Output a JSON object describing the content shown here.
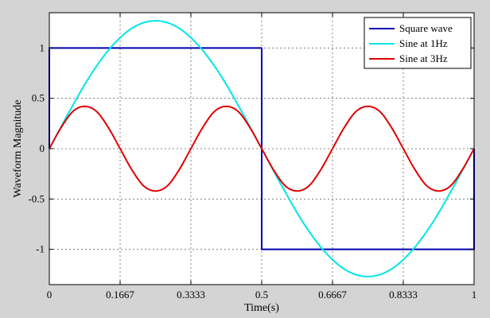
{
  "chart_data": {
    "type": "line",
    "title": "",
    "xlabel": "Time(s)",
    "ylabel": "Waveform Magnitude",
    "xlim": [
      0,
      1
    ],
    "ylim": [
      -1.35,
      1.35
    ],
    "grid": true,
    "legend_position": "top-right",
    "x_ticks": [
      0,
      0.1667,
      0.3333,
      0.5,
      0.6667,
      0.8333,
      1
    ],
    "x_tick_labels": [
      "0",
      "0.1667",
      "0.3333",
      "0.5",
      "0.6667",
      "0.8333",
      "1"
    ],
    "y_ticks": [
      -1,
      -0.5,
      0,
      0.5,
      1
    ],
    "y_tick_labels": [
      "-1",
      "-0.5",
      "0",
      "0.5",
      "1"
    ],
    "series": [
      {
        "name": "Square wave",
        "color": "#0000b0",
        "x": [
          0,
          0,
          0.5,
          0.5,
          1,
          1
        ],
        "y": [
          0,
          1,
          1,
          -1,
          -1,
          0
        ]
      },
      {
        "name": "Sine at 1Hz",
        "color": "#00e5e5",
        "x": [
          0,
          0.05,
          0.1,
          0.15,
          0.2,
          0.25,
          0.3,
          0.35,
          0.4,
          0.45,
          0.5,
          0.55,
          0.6,
          0.65,
          0.7,
          0.75,
          0.8,
          0.85,
          0.9,
          0.95,
          1
        ],
        "y": [
          0,
          0.39,
          0.75,
          1.03,
          1.21,
          1.27,
          1.21,
          1.03,
          0.75,
          0.39,
          0,
          -0.39,
          -0.75,
          -1.03,
          -1.21,
          -1.27,
          -1.21,
          -1.03,
          -0.75,
          -0.39,
          0
        ]
      },
      {
        "name": "Sine at 3Hz",
        "color": "#e00000",
        "x": [
          0,
          0.0278,
          0.0556,
          0.0833,
          0.1111,
          0.1389,
          0.1667,
          0.1944,
          0.2222,
          0.25,
          0.2778,
          0.3056,
          0.3333,
          0.3611,
          0.3889,
          0.4167,
          0.4444,
          0.4722,
          0.5,
          0.5278,
          0.5556,
          0.5833,
          0.6111,
          0.6389,
          0.6667,
          0.6944,
          0.7222,
          0.75,
          0.7778,
          0.8056,
          0.8333,
          0.8611,
          0.8889,
          0.9167,
          0.9444,
          0.9722,
          1
        ],
        "y": [
          0,
          0.21,
          0.37,
          0.42,
          0.37,
          0.21,
          0,
          -0.21,
          -0.37,
          -0.42,
          -0.37,
          -0.21,
          0,
          0.21,
          0.37,
          0.42,
          0.37,
          0.21,
          0,
          -0.21,
          -0.37,
          -0.42,
          -0.37,
          -0.21,
          0,
          0.21,
          0.37,
          0.42,
          0.37,
          0.21,
          0,
          -0.21,
          -0.37,
          -0.42,
          -0.37,
          -0.21,
          0
        ]
      }
    ]
  }
}
